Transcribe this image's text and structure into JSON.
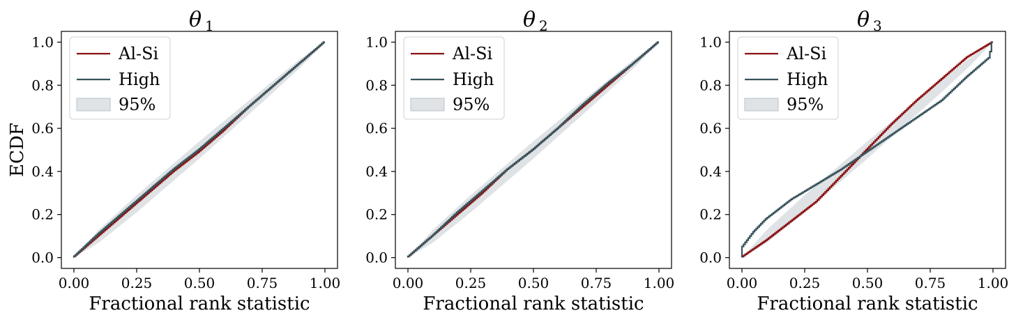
{
  "colors": {
    "alsi": "#8b1010",
    "high": "#36525a",
    "band": "#c9d0d6",
    "band_edge": "#aeb8c0"
  },
  "chart_data": [
    {
      "type": "line",
      "title": "θ",
      "title_sub": "1",
      "xlabel": "Fractional rank statistic",
      "ylabel": "ECDF",
      "xlim": [
        -0.05,
        1.05
      ],
      "ylim": [
        -0.05,
        1.05
      ],
      "xticks": [
        "0.00",
        "0.25",
        "0.50",
        "0.75",
        "1.00"
      ],
      "yticks": [
        "0.0",
        "0.2",
        "0.4",
        "0.6",
        "0.8",
        "1.0"
      ],
      "legend": {
        "placement": "upper-left",
        "entries": [
          "Al-Si",
          "High",
          "95%"
        ]
      },
      "band": {
        "x": [
          0,
          0.1,
          0.25,
          0.5,
          0.75,
          0.9,
          1
        ],
        "lower": [
          0,
          0.07,
          0.21,
          0.46,
          0.72,
          0.88,
          1
        ],
        "upper": [
          0,
          0.13,
          0.29,
          0.54,
          0.78,
          0.92,
          1
        ]
      },
      "series": [
        {
          "name": "Al-Si",
          "x": [
            0,
            0.1,
            0.2,
            0.3,
            0.4,
            0.5,
            0.6,
            0.7,
            0.8,
            0.9,
            1
          ],
          "y": [
            0,
            0.1,
            0.2,
            0.3,
            0.4,
            0.49,
            0.59,
            0.7,
            0.8,
            0.9,
            1
          ]
        },
        {
          "name": "High",
          "x": [
            0,
            0.1,
            0.2,
            0.3,
            0.4,
            0.5,
            0.6,
            0.7,
            0.8,
            0.9,
            1
          ],
          "y": [
            0,
            0.11,
            0.21,
            0.31,
            0.41,
            0.5,
            0.6,
            0.7,
            0.8,
            0.9,
            1
          ]
        }
      ]
    },
    {
      "type": "line",
      "title": "θ",
      "title_sub": "2",
      "xlabel": "Fractional rank statistic",
      "ylabel": "",
      "xlim": [
        -0.05,
        1.05
      ],
      "ylim": [
        -0.05,
        1.05
      ],
      "xticks": [
        "0.00",
        "0.25",
        "0.50",
        "0.75",
        "1.00"
      ],
      "yticks": [
        "0.0",
        "0.2",
        "0.4",
        "0.6",
        "0.8",
        "1.0"
      ],
      "legend": {
        "placement": "upper-left",
        "entries": [
          "Al-Si",
          "High",
          "95%"
        ]
      },
      "band": {
        "x": [
          0,
          0.1,
          0.25,
          0.5,
          0.75,
          0.9,
          1
        ],
        "lower": [
          0,
          0.07,
          0.21,
          0.46,
          0.72,
          0.88,
          1
        ],
        "upper": [
          0,
          0.13,
          0.29,
          0.54,
          0.78,
          0.92,
          1
        ]
      },
      "series": [
        {
          "name": "Al-Si",
          "x": [
            0,
            0.1,
            0.2,
            0.3,
            0.4,
            0.5,
            0.6,
            0.7,
            0.8,
            0.9,
            1
          ],
          "y": [
            0,
            0.1,
            0.2,
            0.3,
            0.41,
            0.5,
            0.6,
            0.7,
            0.8,
            0.9,
            1
          ]
        },
        {
          "name": "High",
          "x": [
            0,
            0.1,
            0.2,
            0.3,
            0.4,
            0.5,
            0.6,
            0.7,
            0.8,
            0.9,
            1
          ],
          "y": [
            0,
            0.1,
            0.21,
            0.31,
            0.41,
            0.5,
            0.6,
            0.71,
            0.81,
            0.9,
            1
          ]
        }
      ]
    },
    {
      "type": "line",
      "title": "θ",
      "title_sub": "3",
      "xlabel": "Fractional rank statistic",
      "ylabel": "",
      "xlim": [
        -0.05,
        1.05
      ],
      "ylim": [
        -0.05,
        1.05
      ],
      "xticks": [
        "0.00",
        "0.25",
        "0.50",
        "0.75",
        "1.00"
      ],
      "yticks": [
        "0.0",
        "0.2",
        "0.4",
        "0.6",
        "0.8",
        "1.0"
      ],
      "legend": {
        "placement": "upper-left",
        "entries": [
          "Al-Si",
          "High",
          "95%"
        ]
      },
      "band": {
        "x": [
          0,
          0.1,
          0.25,
          0.5,
          0.75,
          0.9,
          1
        ],
        "lower": [
          0,
          0.07,
          0.21,
          0.46,
          0.72,
          0.88,
          1
        ],
        "upper": [
          0,
          0.13,
          0.29,
          0.54,
          0.78,
          0.92,
          1
        ]
      },
      "series": [
        {
          "name": "Al-Si",
          "x": [
            0,
            0.05,
            0.1,
            0.2,
            0.3,
            0.4,
            0.5,
            0.6,
            0.7,
            0.8,
            0.9,
            1
          ],
          "y": [
            0,
            0.04,
            0.08,
            0.17,
            0.26,
            0.38,
            0.5,
            0.62,
            0.73,
            0.83,
            0.93,
            1
          ]
        },
        {
          "name": "High",
          "x": [
            0,
            0.005,
            0.05,
            0.1,
            0.2,
            0.3,
            0.4,
            0.5,
            0.6,
            0.7,
            0.8,
            0.9,
            0.99,
            1
          ],
          "y": [
            0,
            0.05,
            0.12,
            0.18,
            0.27,
            0.34,
            0.41,
            0.49,
            0.57,
            0.65,
            0.73,
            0.84,
            0.93,
            1
          ]
        }
      ]
    }
  ]
}
